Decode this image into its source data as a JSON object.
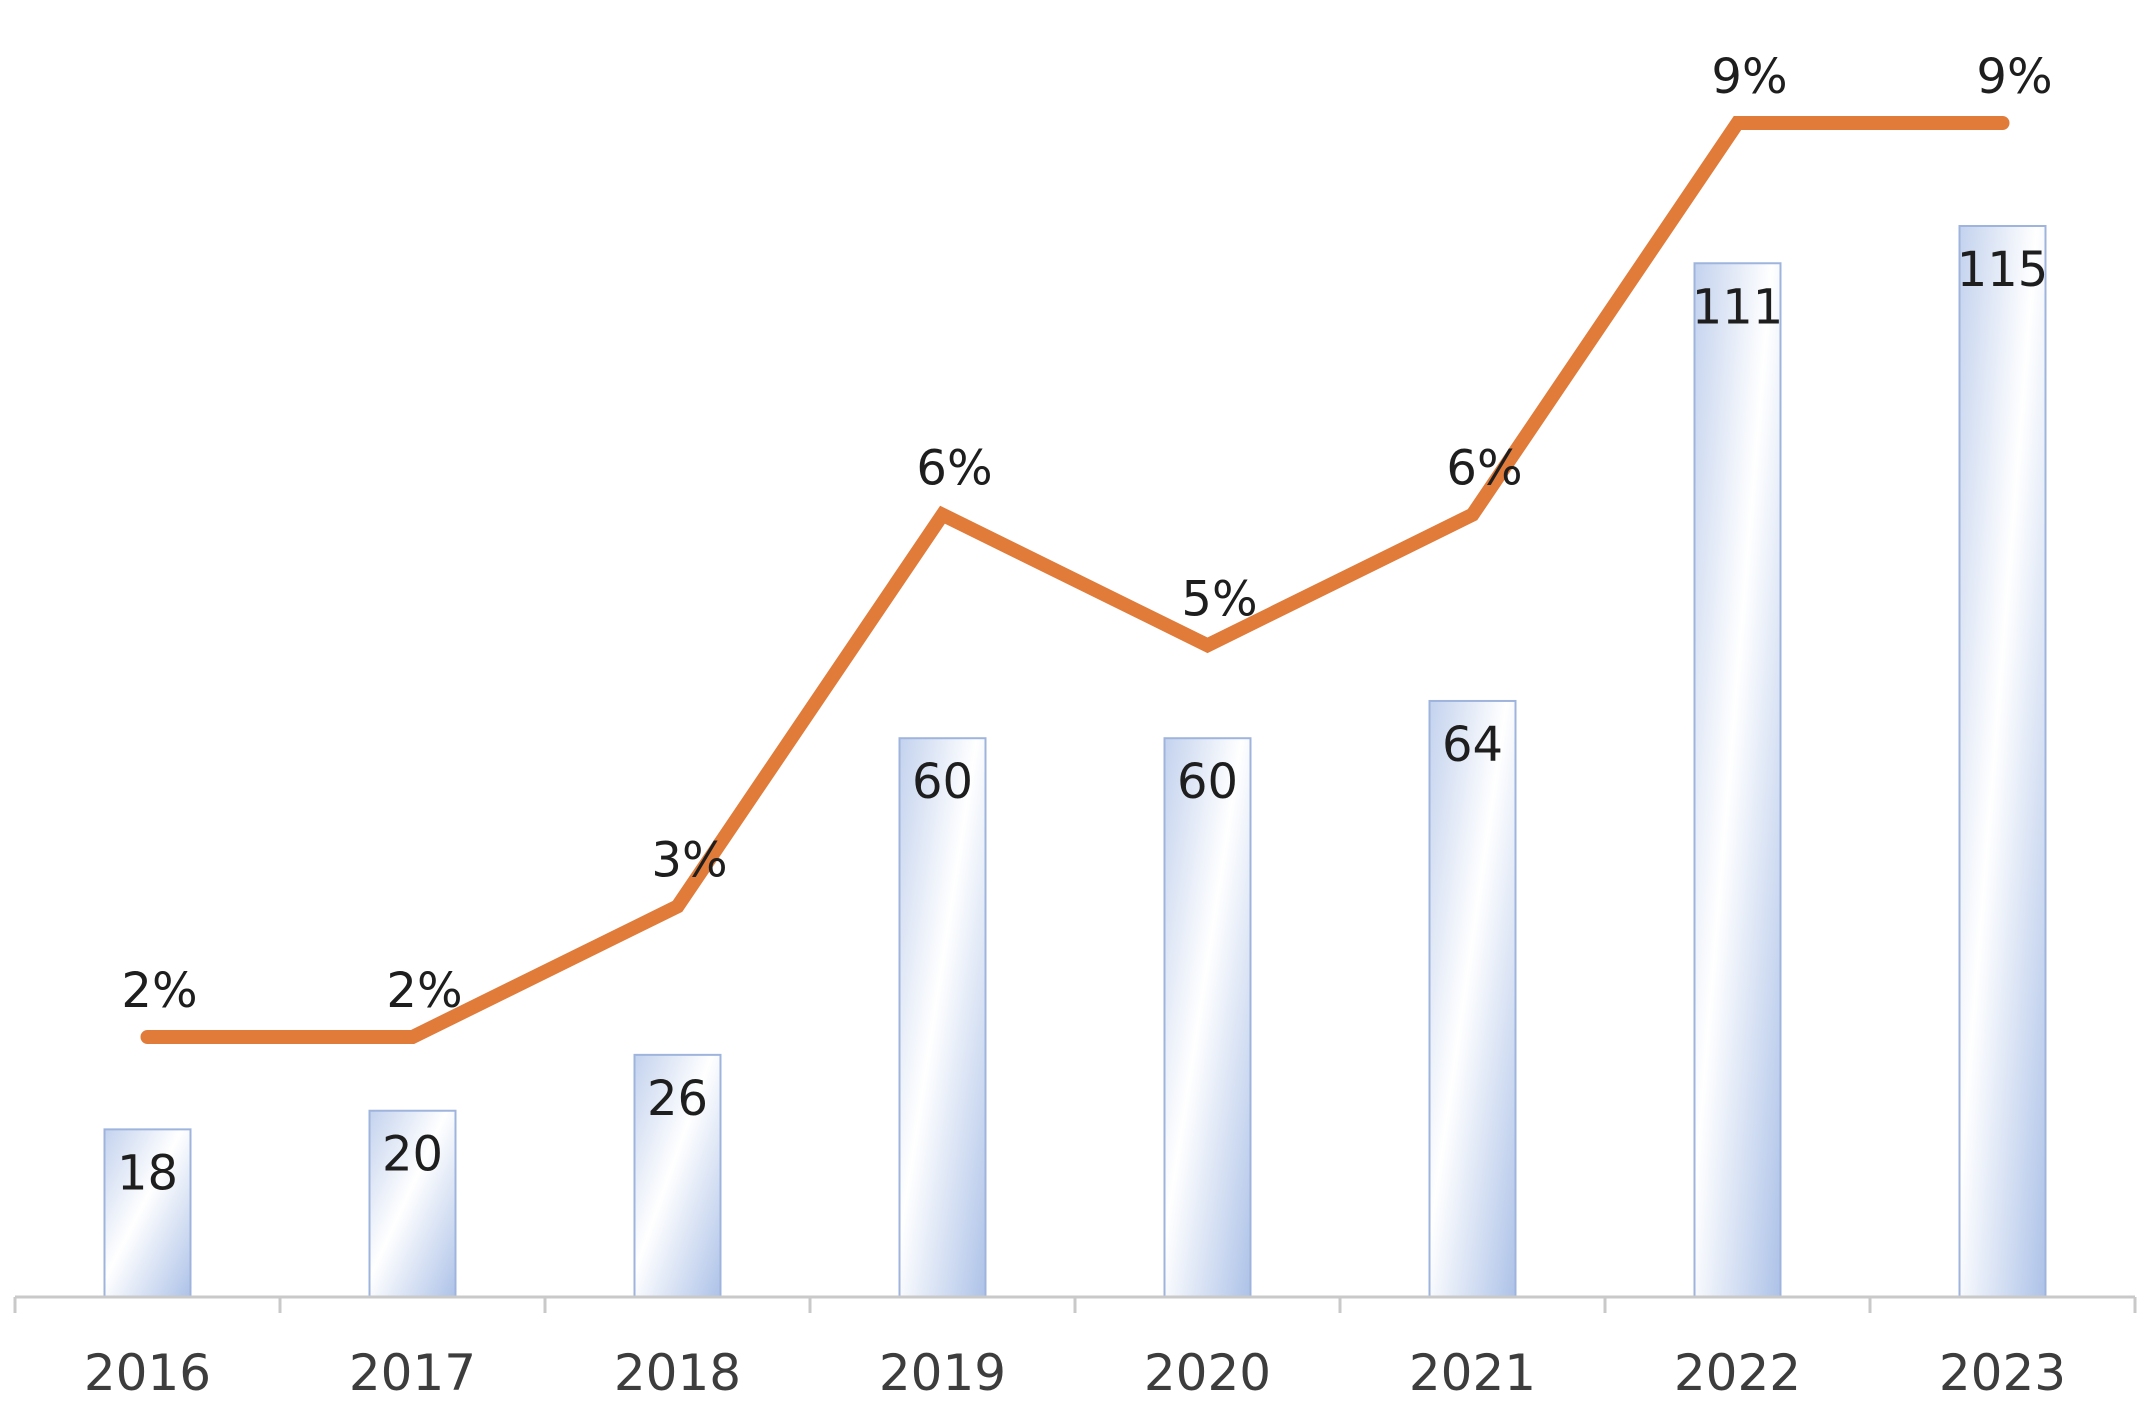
{
  "chart_data": {
    "type": "bar",
    "title": "",
    "xlabel": "",
    "ylabel": "",
    "categories": [
      "2016",
      "2017",
      "2018",
      "2019",
      "2020",
      "2021",
      "2022",
      "2023"
    ],
    "series": [
      {
        "name": "bars",
        "type": "bar",
        "values": [
          18,
          20,
          26,
          60,
          60,
          64,
          111,
          115
        ],
        "labels": [
          "18",
          "20",
          "26",
          "60",
          "60",
          "64",
          "111",
          "115"
        ],
        "color": "#b4c7e7"
      },
      {
        "name": "line",
        "type": "line",
        "values": [
          2,
          2,
          3,
          6,
          5,
          6,
          9,
          9
        ],
        "labels": [
          "2%",
          "2%",
          "3%",
          "6%",
          "5%",
          "6%",
          "9%",
          "9%"
        ],
        "color": "#e07b39"
      }
    ],
    "ylim": [
      0,
      140
    ],
    "y2lim": [
      0,
      10
    ],
    "grid": false,
    "legend": "none"
  },
  "colors": {
    "axis": "#c9c9c9",
    "bar_edge": "#9fb4dd",
    "line": "#e07b39"
  }
}
